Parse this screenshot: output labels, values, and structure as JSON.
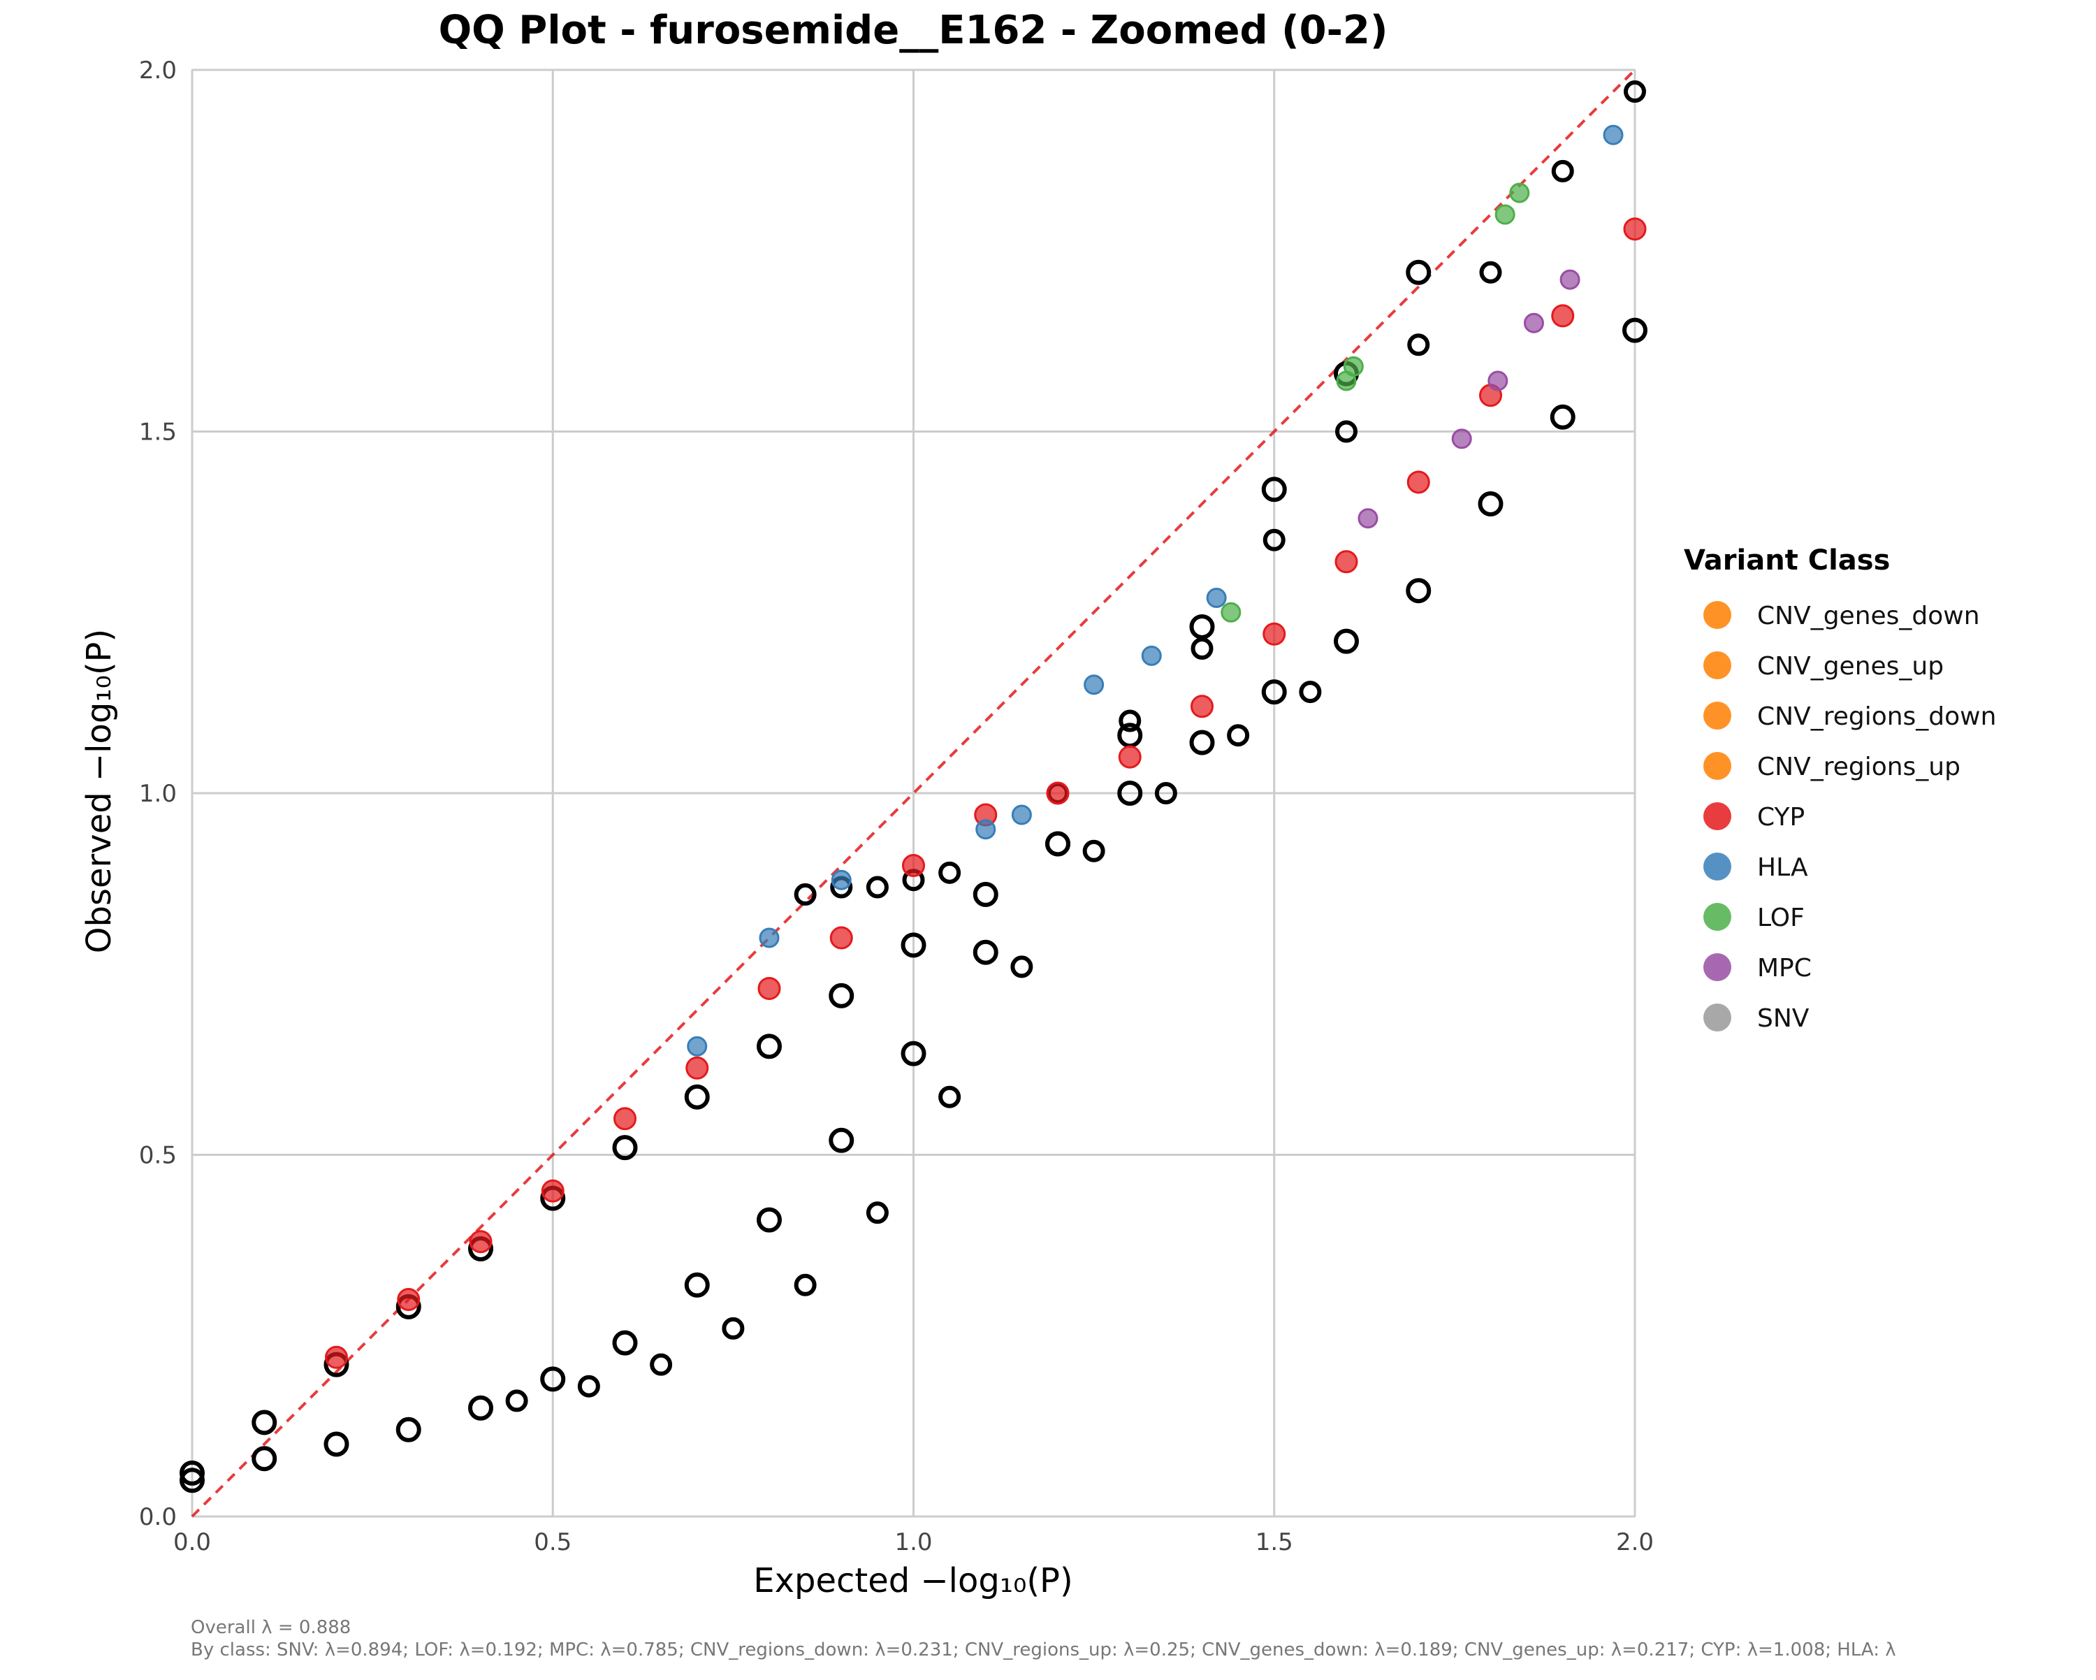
{
  "chart_data": {
    "type": "scatter",
    "title": "QQ Plot - furosemide__E162 - Zoomed (0-2)",
    "xlabel": "Expected −log₁₀(P)",
    "ylabel": "Observed −log₁₀(P)",
    "xlim": [
      0,
      2
    ],
    "ylim": [
      0,
      2
    ],
    "xticks": [
      "0.0",
      "0.5",
      "1.0",
      "1.5",
      "2.0"
    ],
    "yticks": [
      "0.0",
      "0.5",
      "1.0",
      "1.5",
      "2.0"
    ],
    "grid": true,
    "reference_line": {
      "slope": 1,
      "intercept": 0,
      "color": "#e41a1c",
      "style": "dashed"
    },
    "legend": {
      "title": "Variant Class",
      "placement": "right",
      "entries": [
        {
          "label": "CNV_genes_down",
          "color": "#ff7f00"
        },
        {
          "label": "CNV_genes_up",
          "color": "#ff7f00"
        },
        {
          "label": "CNV_regions_down",
          "color": "#ff7f00"
        },
        {
          "label": "CNV_regions_up",
          "color": "#ff7f00"
        },
        {
          "label": "CYP",
          "color": "#e41a1c"
        },
        {
          "label": "HLA",
          "color": "#377eb8"
        },
        {
          "label": "LOF",
          "color": "#4daf4a"
        },
        {
          "label": "MPC",
          "color": "#984ea3"
        },
        {
          "label": "SNV",
          "color": "#999999"
        }
      ]
    },
    "series": [
      {
        "name": "SNV",
        "color": "#000000",
        "x": [
          0,
          0.1,
          0.2,
          0.3,
          0.4,
          0.5,
          0.6,
          0.7,
          0.8,
          0.9,
          1.0,
          1.1,
          1.2,
          1.3,
          1.4,
          1.5,
          1.6,
          1.7,
          1.8,
          1.9,
          2.0
        ],
        "y": [
          0.05,
          0.13,
          0.21,
          0.29,
          0.37,
          0.44,
          0.51,
          0.58,
          0.65,
          0.72,
          0.79,
          0.86,
          0.93,
          1.0,
          1.07,
          1.14,
          1.21,
          1.28,
          1.4,
          1.52,
          1.64
        ]
      },
      {
        "name": "CNV_regions_down",
        "color": "#000000",
        "x": [
          0,
          0.1,
          0.2,
          0.3,
          0.4,
          0.5,
          0.6,
          0.7,
          0.8,
          0.9,
          1.0,
          1.1,
          1.2,
          1.3,
          1.4,
          1.5,
          1.6,
          1.7
        ],
        "y": [
          0.06,
          0.08,
          0.1,
          0.12,
          0.15,
          0.19,
          0.24,
          0.32,
          0.41,
          0.52,
          0.64,
          0.78,
          0.93,
          1.08,
          1.23,
          1.42,
          1.58,
          1.72
        ]
      },
      {
        "name": "CNV_regions_up",
        "color": "#000000",
        "x": [
          0.45,
          0.55,
          0.65,
          0.75,
          0.85,
          0.95,
          1.05,
          1.15,
          1.25,
          1.35,
          1.45,
          1.55
        ],
        "y": [
          0.16,
          0.18,
          0.21,
          0.26,
          0.32,
          0.42,
          0.58,
          0.76,
          0.92,
          1.0,
          1.08,
          1.14
        ]
      },
      {
        "name": "CNV_genes_down",
        "color": "#000000",
        "x": [
          1.2,
          1.3,
          1.4,
          1.5,
          1.6,
          1.7,
          1.8,
          1.9,
          2.0
        ],
        "y": [
          1.0,
          1.1,
          1.2,
          1.35,
          1.5,
          1.62,
          1.72,
          1.86,
          1.97
        ]
      },
      {
        "name": "CNV_genes_up",
        "color": "#000000",
        "x": [
          0.85,
          0.9,
          0.95,
          1.0,
          1.05
        ],
        "y": [
          0.86,
          0.87,
          0.87,
          0.88,
          0.89
        ]
      },
      {
        "name": "CYP",
        "color": "#e41a1c",
        "x": [
          0.2,
          0.3,
          0.4,
          0.5,
          0.6,
          0.7,
          0.8,
          0.9,
          1.0,
          1.1,
          1.2,
          1.3,
          1.4,
          1.5,
          1.6,
          1.7,
          1.8,
          1.9,
          2.0
        ],
        "y": [
          0.22,
          0.3,
          0.38,
          0.45,
          0.55,
          0.62,
          0.73,
          0.8,
          0.9,
          0.97,
          1.0,
          1.05,
          1.12,
          1.22,
          1.32,
          1.43,
          1.55,
          1.66,
          1.78
        ]
      },
      {
        "name": "HLA",
        "color": "#377eb8",
        "x": [
          0.7,
          0.8,
          0.9,
          1.1,
          1.15,
          1.25,
          1.33,
          1.42,
          1.97
        ],
        "y": [
          0.65,
          0.8,
          0.88,
          0.95,
          0.97,
          1.15,
          1.19,
          1.27,
          1.91
        ]
      },
      {
        "name": "LOF",
        "color": "#4daf4a",
        "x": [
          1.44,
          1.6,
          1.61,
          1.82,
          1.84
        ],
        "y": [
          1.25,
          1.57,
          1.59,
          1.8,
          1.83
        ]
      },
      {
        "name": "MPC",
        "color": "#984ea3",
        "x": [
          1.63,
          1.76,
          1.81,
          1.86,
          1.91
        ],
        "y": [
          1.38,
          1.49,
          1.57,
          1.65,
          1.71
        ]
      }
    ],
    "annotations": [
      "Overall λ = 0.888",
      "By class: SNV: λ=0.894; LOF: λ=0.192; MPC: λ=0.785; CNV_regions_down: λ=0.231; CNV_regions_up: λ=0.25; CNV_genes_down: λ=0.189; CNV_genes_up: λ=0.217; CYP: λ=1.008; HLA: λ"
    ]
  }
}
